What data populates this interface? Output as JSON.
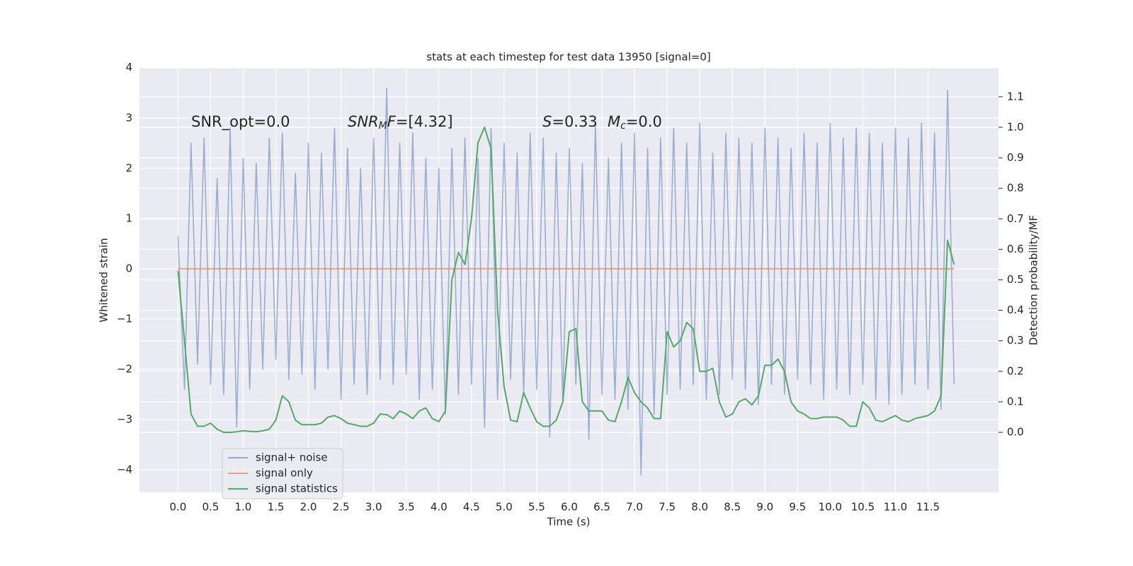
{
  "chart_data": {
    "type": "line",
    "title": "stats at each timestep for test data 13950 [signal=0]",
    "xlabel": "Time (s)",
    "ylabel": "Whitened strain",
    "y2label": "Detection probability/MF",
    "xlim": [
      -0.59,
      12.58
    ],
    "ylim": [
      -4.45,
      4.01
    ],
    "y2lim": [
      -0.197,
      1.197
    ],
    "xticks": [
      {
        "value": 0,
        "label": "0.0"
      },
      0.5,
      {
        "value": 1,
        "label": "1.0"
      },
      1.5,
      {
        "value": 2,
        "label": "2.0"
      },
      2.5,
      {
        "value": 3,
        "label": "3.0"
      },
      3.5,
      {
        "value": 4,
        "label": "4.0"
      },
      4.5,
      {
        "value": 5,
        "label": "5.0"
      },
      5.5,
      {
        "value": 6,
        "label": "6.0"
      },
      6.5,
      {
        "value": 7,
        "label": "7.0"
      },
      7.5,
      {
        "value": 8,
        "label": "8.0"
      },
      8.5,
      {
        "value": 9,
        "label": "9.0"
      },
      9.5,
      {
        "value": 10,
        "label": "10.0"
      },
      10.5,
      {
        "value": 11,
        "label": "11.0"
      },
      11.5
    ],
    "yticks": [
      {
        "value": -4,
        "label": "−4"
      },
      {
        "value": -3,
        "label": "−3"
      },
      {
        "value": -2,
        "label": "−2"
      },
      {
        "value": -1,
        "label": "−1"
      },
      0,
      1,
      2,
      3,
      4
    ],
    "y2ticks": [
      {
        "value": 0,
        "label": "0.0"
      },
      0.1,
      0.2,
      0.3,
      0.4,
      0.5,
      0.6,
      0.7,
      0.8,
      0.9,
      {
        "value": 1,
        "label": "1.0"
      },
      1.1
    ],
    "grid": true,
    "legend": "lower left",
    "annotations": [
      {
        "parts": [
          {
            "text": "SNR_opt=0.0"
          }
        ]
      },
      {
        "parts": [
          {
            "text": "SNR",
            "style": "italic"
          },
          {
            "text": "M",
            "style": "italic-sub"
          },
          {
            "text": "F",
            "style": "italic"
          },
          {
            "text": "=[4.32]"
          }
        ]
      },
      {
        "parts": [
          {
            "text": "S",
            "style": "italic"
          },
          {
            "text": "=0.33"
          }
        ]
      },
      {
        "parts": [
          {
            "text": "M",
            "style": "italic"
          },
          {
            "text": "c",
            "style": "italic-sub"
          },
          {
            "text": "=0.0"
          }
        ]
      }
    ],
    "x": [
      0,
      0.1,
      0.2,
      0.3,
      0.4,
      0.5,
      0.6,
      0.7,
      0.8,
      0.9,
      1,
      1.1,
      1.2,
      1.3,
      1.4,
      1.5,
      1.6,
      1.7,
      1.8,
      1.9,
      2,
      2.1,
      2.2,
      2.3,
      2.4,
      2.5,
      2.6,
      2.7,
      2.8,
      2.9,
      3,
      3.1,
      3.2,
      3.3,
      3.4,
      3.5,
      3.6,
      3.7,
      3.8,
      3.9,
      4,
      4.1,
      4.2,
      4.3,
      4.4,
      4.5,
      4.6,
      4.7,
      4.8,
      4.9,
      5,
      5.1,
      5.2,
      5.3,
      5.4,
      5.5,
      5.6,
      5.7,
      5.8,
      5.9,
      6,
      6.1,
      6.2,
      6.3,
      6.4,
      6.5,
      6.6,
      6.7,
      6.8,
      6.9,
      7,
      7.1,
      7.2,
      7.3,
      7.4,
      7.5,
      7.6,
      7.7,
      7.8,
      7.9,
      8,
      8.1,
      8.2,
      8.3,
      8.4,
      8.5,
      8.6,
      8.7,
      8.8,
      8.9,
      9,
      9.1,
      9.2,
      9.3,
      9.4,
      9.5,
      9.6,
      9.7,
      9.8,
      9.9,
      10,
      10.1,
      10.2,
      10.3,
      10.4,
      10.5,
      10.6,
      10.7,
      10.8,
      10.9,
      11,
      11.1,
      11.2,
      11.3,
      11.4,
      11.5,
      11.6,
      11.7,
      11.8,
      11.9
    ],
    "series": [
      {
        "name": "signal+ noise",
        "color": "#4c72b0",
        "values": [
          0.65,
          -2.4,
          2.5,
          -1.9,
          2.6,
          -2.3,
          1.8,
          -2.5,
          2.8,
          -3.15,
          2.2,
          -2.4,
          2.1,
          -2.0,
          2.6,
          -1.8,
          2.7,
          -2.2,
          1.9,
          -2.1,
          2.5,
          -2.4,
          2.3,
          -2.0,
          2.8,
          -2.6,
          2.4,
          -2.3,
          2.0,
          -2.5,
          2.6,
          -2.2,
          3.6,
          -2.3,
          2.5,
          -2.1,
          2.7,
          -2.6,
          2.2,
          -2.4,
          2.0,
          -2.9,
          2.4,
          -2.5,
          2.6,
          -2.3,
          2.2,
          -3.15,
          2.8,
          -2.6,
          2.5,
          -2.2,
          2.3,
          -2.5,
          2.7,
          -2.4,
          2.6,
          -3.35,
          2.3,
          -2.6,
          2.4,
          -2.3,
          2.1,
          -3.4,
          2.9,
          -2.5,
          2.2,
          -2.6,
          2.5,
          -2.8,
          2.7,
          -4.1,
          2.4,
          -2.9,
          2.6,
          -2.5,
          2.8,
          -2.4,
          2.5,
          -2.3,
          2.9,
          -2.6,
          2.3,
          -2.5,
          2.7,
          -2.2,
          2.6,
          -2.4,
          2.5,
          -2.7,
          2.8,
          -2.3,
          2.6,
          -2.5,
          2.4,
          -2.2,
          2.7,
          -2.3,
          2.5,
          -2.6,
          2.9,
          -2.4,
          2.6,
          -2.5,
          2.8,
          -2.3,
          2.7,
          -2.6,
          2.5,
          -2.7,
          2.8,
          -2.5,
          2.6,
          -2.3,
          2.9,
          -2.4,
          2.7,
          -2.8,
          3.55,
          -2.3
        ]
      },
      {
        "name": "signal only",
        "color": "#dd8452",
        "values": [
          0,
          0,
          0,
          0,
          0,
          0,
          0,
          0,
          0,
          0,
          0,
          0,
          0,
          0,
          0,
          0,
          0,
          0,
          0,
          0,
          0,
          0,
          0,
          0,
          0,
          0,
          0,
          0,
          0,
          0,
          0,
          0,
          0,
          0,
          0,
          0,
          0,
          0,
          0,
          0,
          0,
          0,
          0,
          0,
          0,
          0,
          0,
          0,
          0,
          0,
          0,
          0,
          0,
          0,
          0,
          0,
          0,
          0,
          0,
          0,
          0,
          0,
          0,
          0,
          0,
          0,
          0,
          0,
          0,
          0,
          0,
          0,
          0,
          0,
          0,
          0,
          0,
          0,
          0,
          0,
          0,
          0,
          0,
          0,
          0,
          0,
          0,
          0,
          0,
          0,
          0,
          0,
          0,
          0,
          0,
          0,
          0,
          0,
          0,
          0,
          0,
          0,
          0,
          0,
          0,
          0,
          0,
          0,
          0,
          0,
          0,
          0,
          0,
          0,
          0,
          0,
          0,
          0,
          0,
          0
        ]
      },
      {
        "name": "signal statistics",
        "color": "#55a868",
        "axis": "y2",
        "values": [
          0.53,
          0.3,
          0.06,
          0.02,
          0.02,
          0.03,
          0.01,
          0.0,
          0.0,
          0.002,
          0.005,
          0.003,
          0.002,
          0.005,
          0.01,
          0.04,
          0.12,
          0.1,
          0.04,
          0.025,
          0.025,
          0.025,
          0.03,
          0.05,
          0.055,
          0.045,
          0.03,
          0.025,
          0.02,
          0.02,
          0.03,
          0.06,
          0.058,
          0.045,
          0.07,
          0.06,
          0.045,
          0.07,
          0.08,
          0.045,
          0.035,
          0.07,
          0.5,
          0.59,
          0.55,
          0.7,
          0.95,
          1.0,
          0.93,
          0.4,
          0.15,
          0.04,
          0.035,
          0.13,
          0.08,
          0.035,
          0.02,
          0.02,
          0.04,
          0.1,
          0.33,
          0.34,
          0.1,
          0.07,
          0.07,
          0.07,
          0.04,
          0.035,
          0.1,
          0.18,
          0.13,
          0.1,
          0.08,
          0.045,
          0.045,
          0.33,
          0.28,
          0.3,
          0.36,
          0.34,
          0.2,
          0.2,
          0.21,
          0.1,
          0.05,
          0.06,
          0.1,
          0.11,
          0.09,
          0.12,
          0.22,
          0.22,
          0.24,
          0.2,
          0.1,
          0.07,
          0.06,
          0.045,
          0.045,
          0.05,
          0.05,
          0.05,
          0.04,
          0.02,
          0.02,
          0.1,
          0.08,
          0.04,
          0.035,
          0.045,
          0.055,
          0.04,
          0.035,
          0.045,
          0.05,
          0.055,
          0.07,
          0.12,
          0.63,
          0.55
        ]
      }
    ]
  }
}
